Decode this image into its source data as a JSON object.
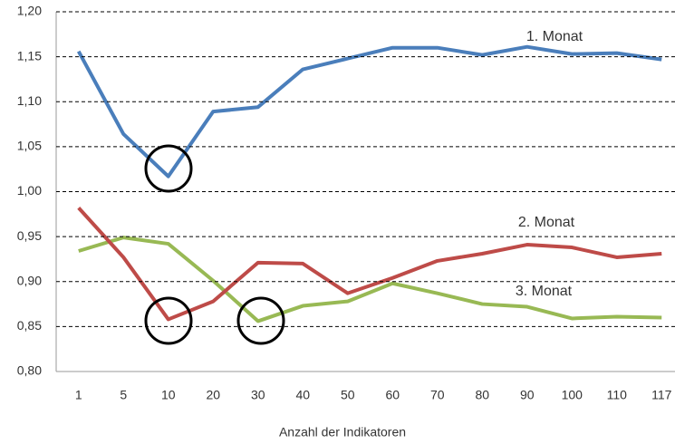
{
  "chart_data": {
    "type": "line",
    "x_label": "Anzahl der Indikatoren",
    "categories": [
      "1",
      "5",
      "10",
      "20",
      "30",
      "40",
      "50",
      "60",
      "70",
      "80",
      "90",
      "100",
      "110",
      "117"
    ],
    "series": [
      {
        "name": "1. Monat",
        "color": "#4a7ebb",
        "values": [
          1.156,
          1.064,
          1.017,
          1.089,
          1.094,
          1.136,
          1.148,
          1.16,
          1.16,
          1.152,
          1.161,
          1.153,
          1.154,
          1.147
        ]
      },
      {
        "name": "2. Monat",
        "color": "#be4b48",
        "values": [
          0.982,
          0.927,
          0.858,
          0.878,
          0.921,
          0.92,
          0.887,
          0.904,
          0.923,
          0.931,
          0.941,
          0.938,
          0.927,
          0.931
        ]
      },
      {
        "name": "3. Monat",
        "color": "#98b954",
        "values": [
          0.934,
          0.949,
          0.942,
          0.901,
          0.856,
          0.873,
          0.878,
          0.898,
          0.887,
          0.875,
          0.872,
          0.859,
          0.861,
          0.86
        ]
      }
    ],
    "ylim": [
      0.8,
      1.2
    ],
    "yticks": [
      {
        "value": 0.8,
        "label": "0,80"
      },
      {
        "value": 0.85,
        "label": "0,85"
      },
      {
        "value": 0.9,
        "label": "0,90"
      },
      {
        "value": 0.95,
        "label": "0,95"
      },
      {
        "value": 1.0,
        "label": "1,00"
      },
      {
        "value": 1.05,
        "label": "1,05"
      },
      {
        "value": 1.1,
        "label": "1,10"
      },
      {
        "value": 1.15,
        "label": "1,15"
      },
      {
        "value": 1.2,
        "label": "1,20"
      }
    ],
    "grid": true
  }
}
